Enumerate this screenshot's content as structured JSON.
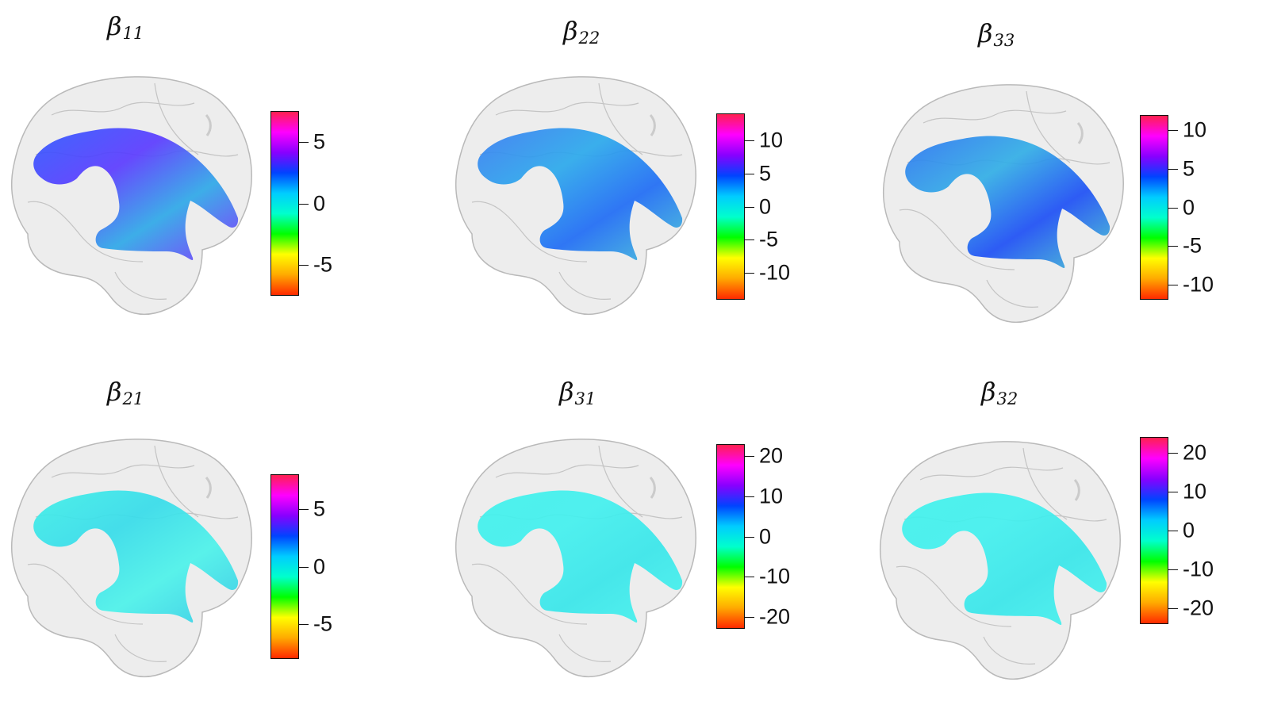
{
  "colorbar_gradient": [
    "#ff2a00",
    "#ffaa00",
    "#ffff00",
    "#00ff00",
    "#00ffcc",
    "#00ccff",
    "#0044ff",
    "#8800ff",
    "#ff00ff",
    "#ff2050"
  ],
  "brain_gray": "#d8d8d8",
  "panels": [
    {
      "name": "beta-11",
      "symbol": "β",
      "sub": "11",
      "fill_colors": [
        "#2e5bff",
        "#5b3bff",
        "#2ea8e8",
        "#7a2cff"
      ],
      "ticks": [
        {
          "label": "5",
          "value": 5
        },
        {
          "label": "0",
          "value": 0
        },
        {
          "label": "-5",
          "value": -5
        }
      ],
      "range": [
        -7.5,
        7.5
      ]
    },
    {
      "name": "beta-22",
      "symbol": "β",
      "sub": "22",
      "fill_colors": [
        "#3a7cf2",
        "#2ba9ec",
        "#1f6cf5",
        "#45c4d8"
      ],
      "ticks": [
        {
          "label": "10",
          "value": 10
        },
        {
          "label": "5",
          "value": 5
        },
        {
          "label": "0",
          "value": 0
        },
        {
          "label": "-5",
          "value": -5
        },
        {
          "label": "-10",
          "value": -10
        }
      ],
      "range": [
        -14,
        14
      ]
    },
    {
      "name": "beta-33",
      "symbol": "β",
      "sub": "33",
      "fill_colors": [
        "#2e74f2",
        "#32aee6",
        "#1d4ff5",
        "#46c8d0"
      ],
      "ticks": [
        {
          "label": "10",
          "value": 10
        },
        {
          "label": "5",
          "value": 5
        },
        {
          "label": "0",
          "value": 0
        },
        {
          "label": "-5",
          "value": -5
        },
        {
          "label": "-10",
          "value": -10
        }
      ],
      "range": [
        -12,
        12
      ]
    },
    {
      "name": "beta-21",
      "symbol": "β",
      "sub": "21",
      "fill_colors": [
        "#3ff0e8",
        "#36dcea",
        "#4cf2ea",
        "#33c9e6"
      ],
      "ticks": [
        {
          "label": "5",
          "value": 5
        },
        {
          "label": "0",
          "value": 0
        },
        {
          "label": "-5",
          "value": -5
        }
      ],
      "range": [
        -8,
        8
      ]
    },
    {
      "name": "beta-31",
      "symbol": "β",
      "sub": "31",
      "fill_colors": [
        "#3ff2ec",
        "#42f0ee",
        "#38e6ea",
        "#48f4ee"
      ],
      "ticks": [
        {
          "label": "20",
          "value": 20
        },
        {
          "label": "10",
          "value": 10
        },
        {
          "label": "0",
          "value": 0
        },
        {
          "label": "-10",
          "value": -10
        },
        {
          "label": "-20",
          "value": -20
        }
      ],
      "range": [
        -23,
        23
      ]
    },
    {
      "name": "beta-32",
      "symbol": "β",
      "sub": "32",
      "fill_colors": [
        "#3ff2ec",
        "#42f0ee",
        "#38e6ea",
        "#48f4ee"
      ],
      "ticks": [
        {
          "label": "20",
          "value": 20
        },
        {
          "label": "10",
          "value": 10
        },
        {
          "label": "0",
          "value": 0
        },
        {
          "label": "-10",
          "value": -10
        },
        {
          "label": "-20",
          "value": -20
        }
      ],
      "range": [
        -24,
        24
      ]
    }
  ]
}
